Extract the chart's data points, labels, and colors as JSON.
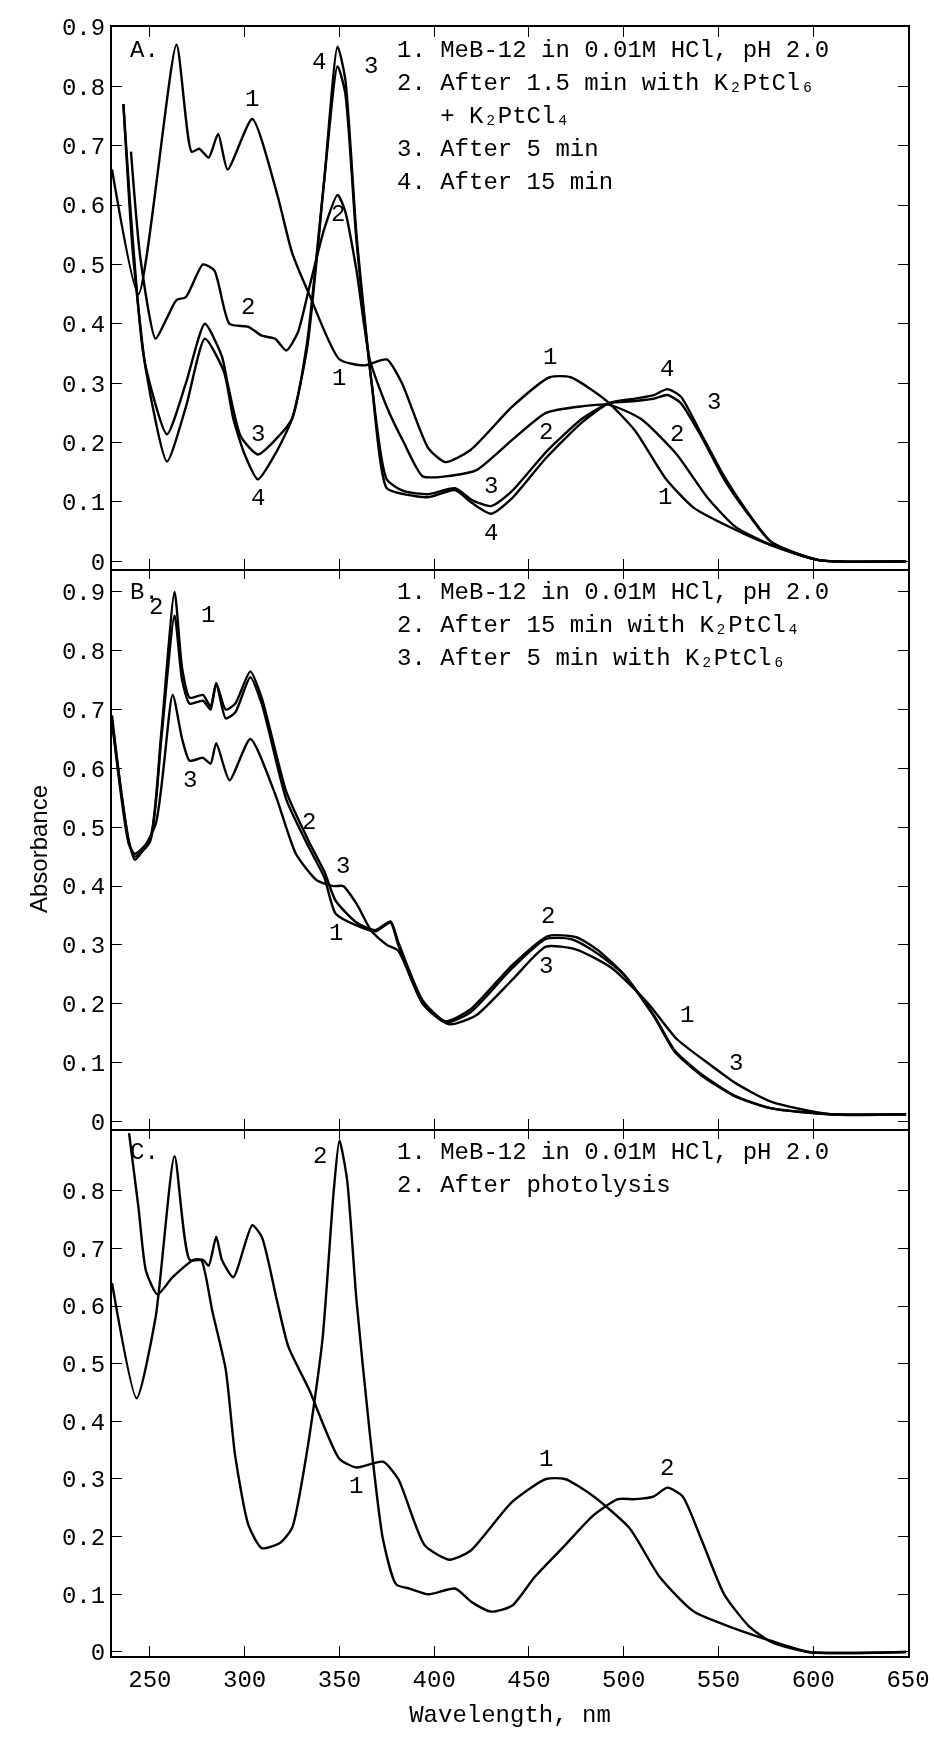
{
  "chart_data": [
    {
      "type": "line",
      "title": "A.",
      "line_style": "solid",
      "tick_labels": "y",
      "xlim": [
        230,
        650
      ],
      "xticks": [
        250,
        300,
        350,
        400,
        450,
        500,
        550,
        600,
        650
      ],
      "ylim": [
        -0.013,
        0.9
      ],
      "yticks": [
        0,
        0.1,
        0.2,
        0.3,
        0.4,
        0.5,
        0.6,
        0.7,
        0.8,
        0.9
      ],
      "grid": false,
      "series": [
        {
          "color": "#000000",
          "x": [
            230,
            244,
            264,
            272,
            276,
            281,
            286,
            291,
            304,
            317,
            325,
            334,
            350,
            363,
            375,
            383,
            397,
            406,
            419,
            441,
            461,
            472,
            491,
            506,
            522,
            537,
            563,
            578,
            603,
            649
          ],
          "values": [
            0.66,
            0.45,
            0.87,
            0.69,
            0.695,
            0.68,
            0.72,
            0.66,
            0.745,
            0.62,
            0.52,
            0.45,
            0.34,
            0.33,
            0.34,
            0.3,
            0.19,
            0.167,
            0.187,
            0.26,
            0.31,
            0.31,
            0.27,
            0.22,
            0.14,
            0.09,
            0.047,
            0.027,
            0.002,
            0
          ]
        },
        {
          "color": "#000000",
          "x": [
            240,
            245,
            253,
            259,
            264,
            269,
            278,
            284,
            292,
            302,
            309,
            316,
            322,
            328,
            334,
            342,
            349,
            353,
            359,
            366,
            375,
            384,
            394,
            406,
            422,
            441,
            459,
            478,
            492,
            509,
            528,
            544,
            559,
            578,
            603,
            649
          ],
          "values": [
            0.69,
            0.51,
            0.375,
            0.41,
            0.44,
            0.445,
            0.5,
            0.49,
            0.4,
            0.395,
            0.38,
            0.375,
            0.355,
            0.385,
            0.46,
            0.56,
            0.617,
            0.59,
            0.49,
            0.34,
            0.26,
            0.2,
            0.143,
            0.143,
            0.153,
            0.204,
            0.25,
            0.261,
            0.264,
            0.24,
            0.18,
            0.108,
            0.058,
            0.027,
            0.002,
            0
          ]
        },
        {
          "color": "#000000",
          "x": [
            236,
            241,
            247,
            259,
            269,
            279,
            288,
            291,
            298,
            307,
            316,
            325,
            333,
            342,
            349,
            353,
            359,
            367,
            375,
            384,
            397,
            411,
            420,
            430,
            441,
            459,
            478,
            492,
            506,
            516,
            523,
            530,
            541,
            553,
            566,
            578,
            603,
            649
          ],
          "values": [
            0.77,
            0.54,
            0.34,
            0.214,
            0.3,
            0.4,
            0.345,
            0.3,
            0.21,
            0.18,
            0.204,
            0.24,
            0.37,
            0.643,
            0.834,
            0.79,
            0.54,
            0.3,
            0.138,
            0.118,
            0.113,
            0.123,
            0.103,
            0.093,
            0.118,
            0.184,
            0.24,
            0.266,
            0.27,
            0.274,
            0.28,
            0.267,
            0.21,
            0.138,
            0.078,
            0.032,
            0.002,
            0
          ]
        },
        {
          "color": "#000000",
          "x": [
            236,
            241,
            248,
            259,
            269,
            279,
            289,
            294,
            300,
            307,
            316,
            325,
            333,
            342,
            349,
            353,
            359,
            367,
            375,
            384,
            397,
            411,
            420,
            430,
            441,
            459,
            478,
            492,
            506,
            516,
            523,
            530,
            541,
            553,
            566,
            578,
            603,
            649
          ],
          "values": [
            0.77,
            0.52,
            0.32,
            0.168,
            0.26,
            0.375,
            0.32,
            0.24,
            0.18,
            0.138,
            0.18,
            0.24,
            0.36,
            0.643,
            0.867,
            0.814,
            0.55,
            0.3,
            0.123,
            0.113,
            0.108,
            0.12,
            0.098,
            0.08,
            0.106,
            0.174,
            0.234,
            0.266,
            0.274,
            0.28,
            0.29,
            0.278,
            0.214,
            0.143,
            0.08,
            0.032,
            0.002,
            0
          ]
        }
      ],
      "annotations": [
        "1. MeB-12 in 0.01M HCl, pH 2.0",
        "2. After 1.5 min with K₂PtCl₆",
        "   + K₂PtCl₄",
        "3. After 5 min",
        "4. After 15 min",
        {
          "text": "1",
          "x": 304,
          "y": 0.745
        },
        {
          "text": "4",
          "x": 349,
          "y": 0.867
        },
        {
          "text": "3",
          "x": 349,
          "y": 0.834
        },
        {
          "text": "2",
          "x": 349,
          "y": 0.617
        },
        {
          "text": "2",
          "x": 302,
          "y": 0.395
        },
        {
          "text": "3",
          "x": 307,
          "y": 0.18
        },
        {
          "text": "4",
          "x": 307,
          "y": 0.138
        },
        {
          "text": "1",
          "x": 350,
          "y": 0.34
        },
        {
          "text": "1",
          "x": 461,
          "y": 0.31
        },
        {
          "text": "2",
          "x": 459,
          "y": 0.25
        },
        {
          "text": "3",
          "x": 430,
          "y": 0.093
        },
        {
          "text": "4",
          "x": 430,
          "y": 0.08
        },
        {
          "text": "4",
          "x": 523,
          "y": 0.29
        },
        {
          "text": "3",
          "x": 530,
          "y": 0.267
        },
        {
          "text": "2",
          "x": 528,
          "y": 0.18
        },
        {
          "text": "1",
          "x": 522,
          "y": 0.14
        }
      ]
    },
    {
      "type": "line",
      "title": "B.",
      "ylabel": "Absorbance",
      "line_style": "solid",
      "tick_labels": "y",
      "xlim": [
        230,
        650
      ],
      "xticks": [
        250,
        300,
        350,
        400,
        450,
        500,
        550,
        600,
        650
      ],
      "ylim": [
        -0.013,
        0.939
      ],
      "yticks": [
        0,
        0.1,
        0.2,
        0.3,
        0.4,
        0.5,
        0.6,
        0.7,
        0.8,
        0.9
      ],
      "grid": false,
      "series": [
        {
          "color": "#000000",
          "x": [
            230,
            239,
            242,
            250,
            256,
            263,
            267,
            271,
            278,
            282,
            285,
            290,
            295,
            303,
            309,
            322,
            334,
            342,
            348,
            359,
            369,
            377,
            381,
            394,
            406,
            419,
            441,
            459,
            472,
            484,
            500,
            516,
            527,
            541,
            559,
            578,
            609,
            649
          ],
          "values": [
            0.68,
            0.475,
            0.45,
            0.475,
            0.65,
            0.86,
            0.75,
            0.71,
            0.715,
            0.7,
            0.745,
            0.685,
            0.695,
            0.755,
            0.71,
            0.547,
            0.465,
            0.415,
            0.353,
            0.333,
            0.323,
            0.338,
            0.3,
            0.2,
            0.168,
            0.185,
            0.26,
            0.31,
            0.31,
            0.29,
            0.25,
            0.18,
            0.12,
            0.08,
            0.043,
            0.022,
            0.012,
            0.012
          ]
        },
        {
          "color": "#000000",
          "x": [
            230,
            239,
            242,
            250,
            256,
            263,
            267,
            271,
            278,
            282,
            285,
            290,
            295,
            303,
            309,
            322,
            334,
            342,
            348,
            359,
            369,
            377,
            381,
            394,
            406,
            419,
            441,
            460,
            475,
            486,
            500,
            516,
            527,
            541,
            559,
            578,
            609,
            649
          ],
          "values": [
            0.68,
            0.47,
            0.455,
            0.48,
            0.66,
            0.9,
            0.77,
            0.72,
            0.725,
            0.705,
            0.745,
            0.7,
            0.71,
            0.765,
            0.72,
            0.56,
            0.475,
            0.425,
            0.375,
            0.338,
            0.325,
            0.34,
            0.305,
            0.205,
            0.17,
            0.19,
            0.265,
            0.315,
            0.313,
            0.292,
            0.25,
            0.178,
            0.118,
            0.078,
            0.042,
            0.022,
            0.012,
            0.012
          ]
        },
        {
          "color": "#000000",
          "x": [
            230,
            242,
            253,
            262,
            267,
            271,
            278,
            282,
            285,
            292,
            303,
            316,
            327,
            338,
            347,
            352,
            359,
            367,
            375,
            381,
            394,
            408,
            422,
            441,
            459,
            475,
            494,
            513,
            528,
            544,
            559,
            578,
            609,
            649
          ],
          "values": [
            0.69,
            0.445,
            0.505,
            0.725,
            0.65,
            0.613,
            0.618,
            0.608,
            0.643,
            0.58,
            0.65,
            0.557,
            0.455,
            0.41,
            0.4,
            0.4,
            0.37,
            0.323,
            0.3,
            0.29,
            0.2,
            0.165,
            0.18,
            0.24,
            0.297,
            0.292,
            0.26,
            0.2,
            0.14,
            0.1,
            0.065,
            0.033,
            0.012,
            0.012
          ]
        }
      ],
      "annotations": [
        "1. MeB-12 in 0.01M HCl, pH 2.0",
        "2. After 15 min with K₂PtCl₄",
        "3. After 5 min with K₂PtCl₆",
        {
          "text": "2",
          "x": 263,
          "y": 0.9
        },
        {
          "text": "1",
          "x": 263,
          "y": 0.86
        },
        {
          "text": "3",
          "x": 271,
          "y": 0.613
        },
        {
          "text": "3",
          "x": 352,
          "y": 0.4
        },
        {
          "text": "2",
          "x": 334,
          "y": 0.475
        },
        {
          "text": "1",
          "x": 348,
          "y": 0.353
        },
        {
          "text": "2",
          "x": 460,
          "y": 0.315
        },
        {
          "text": "3",
          "x": 459,
          "y": 0.297
        },
        {
          "text": "3",
          "x": 559,
          "y": 0.065
        },
        {
          "text": "1",
          "x": 516,
          "y": 0.18
        }
      ]
    },
    {
      "type": "line",
      "title": "C.",
      "xlabel": "Wavelength, nm",
      "line_style": "solid",
      "xlim": [
        230,
        650
      ],
      "xticks": [
        250,
        300,
        350,
        400,
        450,
        500,
        550,
        600,
        650
      ],
      "ylim": [
        -0.007,
        0.907
      ],
      "yticks": [
        0,
        0.1,
        0.2,
        0.3,
        0.4,
        0.5,
        0.6,
        0.7,
        0.8
      ],
      "grid": false,
      "series": [
        {
          "color": "#000000",
          "x": [
            230,
            243,
            253,
            263,
            271,
            278,
            281,
            285,
            288,
            294,
            304,
            309,
            317,
            323,
            334,
            350,
            359,
            373,
            381,
            395,
            408,
            419,
            441,
            459,
            469,
            484,
            503,
            519,
            537,
            559,
            578,
            598,
            649
          ],
          "values": [
            0.64,
            0.44,
            0.58,
            0.86,
            0.68,
            0.68,
            0.67,
            0.72,
            0.68,
            0.65,
            0.74,
            0.72,
            0.61,
            0.53,
            0.455,
            0.335,
            0.32,
            0.33,
            0.3,
            0.185,
            0.16,
            0.175,
            0.26,
            0.3,
            0.3,
            0.27,
            0.215,
            0.13,
            0.07,
            0.04,
            0.019,
            0,
            0
          ]
        },
        {
          "color": "#000000",
          "x": [
            239,
            244,
            248,
            254,
            262,
            273,
            277,
            283,
            290,
            295,
            302,
            309,
            319,
            325,
            333,
            341,
            347,
            350,
            354,
            359,
            366,
            373,
            380,
            387,
            397,
            411,
            420,
            430,
            441,
            453,
            469,
            484,
            497,
            506,
            516,
            523,
            531,
            541,
            553,
            566,
            578,
            597,
            649
          ],
          "values": [
            0.9,
            0.77,
            0.66,
            0.62,
            0.65,
            0.68,
            0.68,
            0.59,
            0.49,
            0.34,
            0.22,
            0.18,
            0.19,
            0.215,
            0.35,
            0.54,
            0.8,
            0.887,
            0.82,
            0.61,
            0.38,
            0.195,
            0.117,
            0.11,
            0.1,
            0.11,
            0.086,
            0.07,
            0.08,
            0.13,
            0.185,
            0.237,
            0.265,
            0.265,
            0.27,
            0.285,
            0.27,
            0.195,
            0.1,
            0.045,
            0.017,
            0,
            0
          ]
        }
      ],
      "annotations": [
        "1. MeB-12 in 0.01M HCl, pH 2.0",
        "2. After photolysis",
        {
          "text": "2",
          "x": 350,
          "y": 0.887
        },
        {
          "text": "1",
          "x": 359,
          "y": 0.32
        },
        {
          "text": "1",
          "x": 459,
          "y": 0.3
        },
        {
          "text": "2",
          "x": 523,
          "y": 0.285
        }
      ]
    }
  ]
}
